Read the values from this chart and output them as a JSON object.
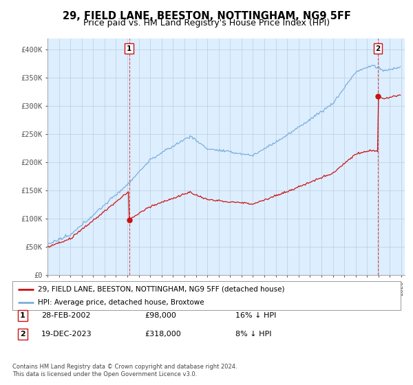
{
  "title": "29, FIELD LANE, BEESTON, NOTTINGHAM, NG9 5FF",
  "subtitle": "Price paid vs. HM Land Registry's House Price Index (HPI)",
  "ylim": [
    0,
    420000
  ],
  "yticks": [
    0,
    50000,
    100000,
    150000,
    200000,
    250000,
    300000,
    350000,
    400000
  ],
  "ytick_labels": [
    "£0",
    "£50K",
    "£100K",
    "£150K",
    "£200K",
    "£250K",
    "£300K",
    "£350K",
    "£400K"
  ],
  "hpi_color": "#7aafdc",
  "price_color": "#cc1111",
  "chart_bg": "#ddeeff",
  "marker1_date": 2002.15,
  "marker1_price": 98000,
  "marker2_date": 2023.96,
  "marker2_price": 318000,
  "legend_label1": "29, FIELD LANE, BEESTON, NOTTINGHAM, NG9 5FF (detached house)",
  "legend_label2": "HPI: Average price, detached house, Broxtowe",
  "footer": "Contains HM Land Registry data © Crown copyright and database right 2024.\nThis data is licensed under the Open Government Licence v3.0.",
  "bg_color": "#ffffff",
  "grid_color": "#bbccdd",
  "title_fontsize": 10,
  "subtitle_fontsize": 9
}
